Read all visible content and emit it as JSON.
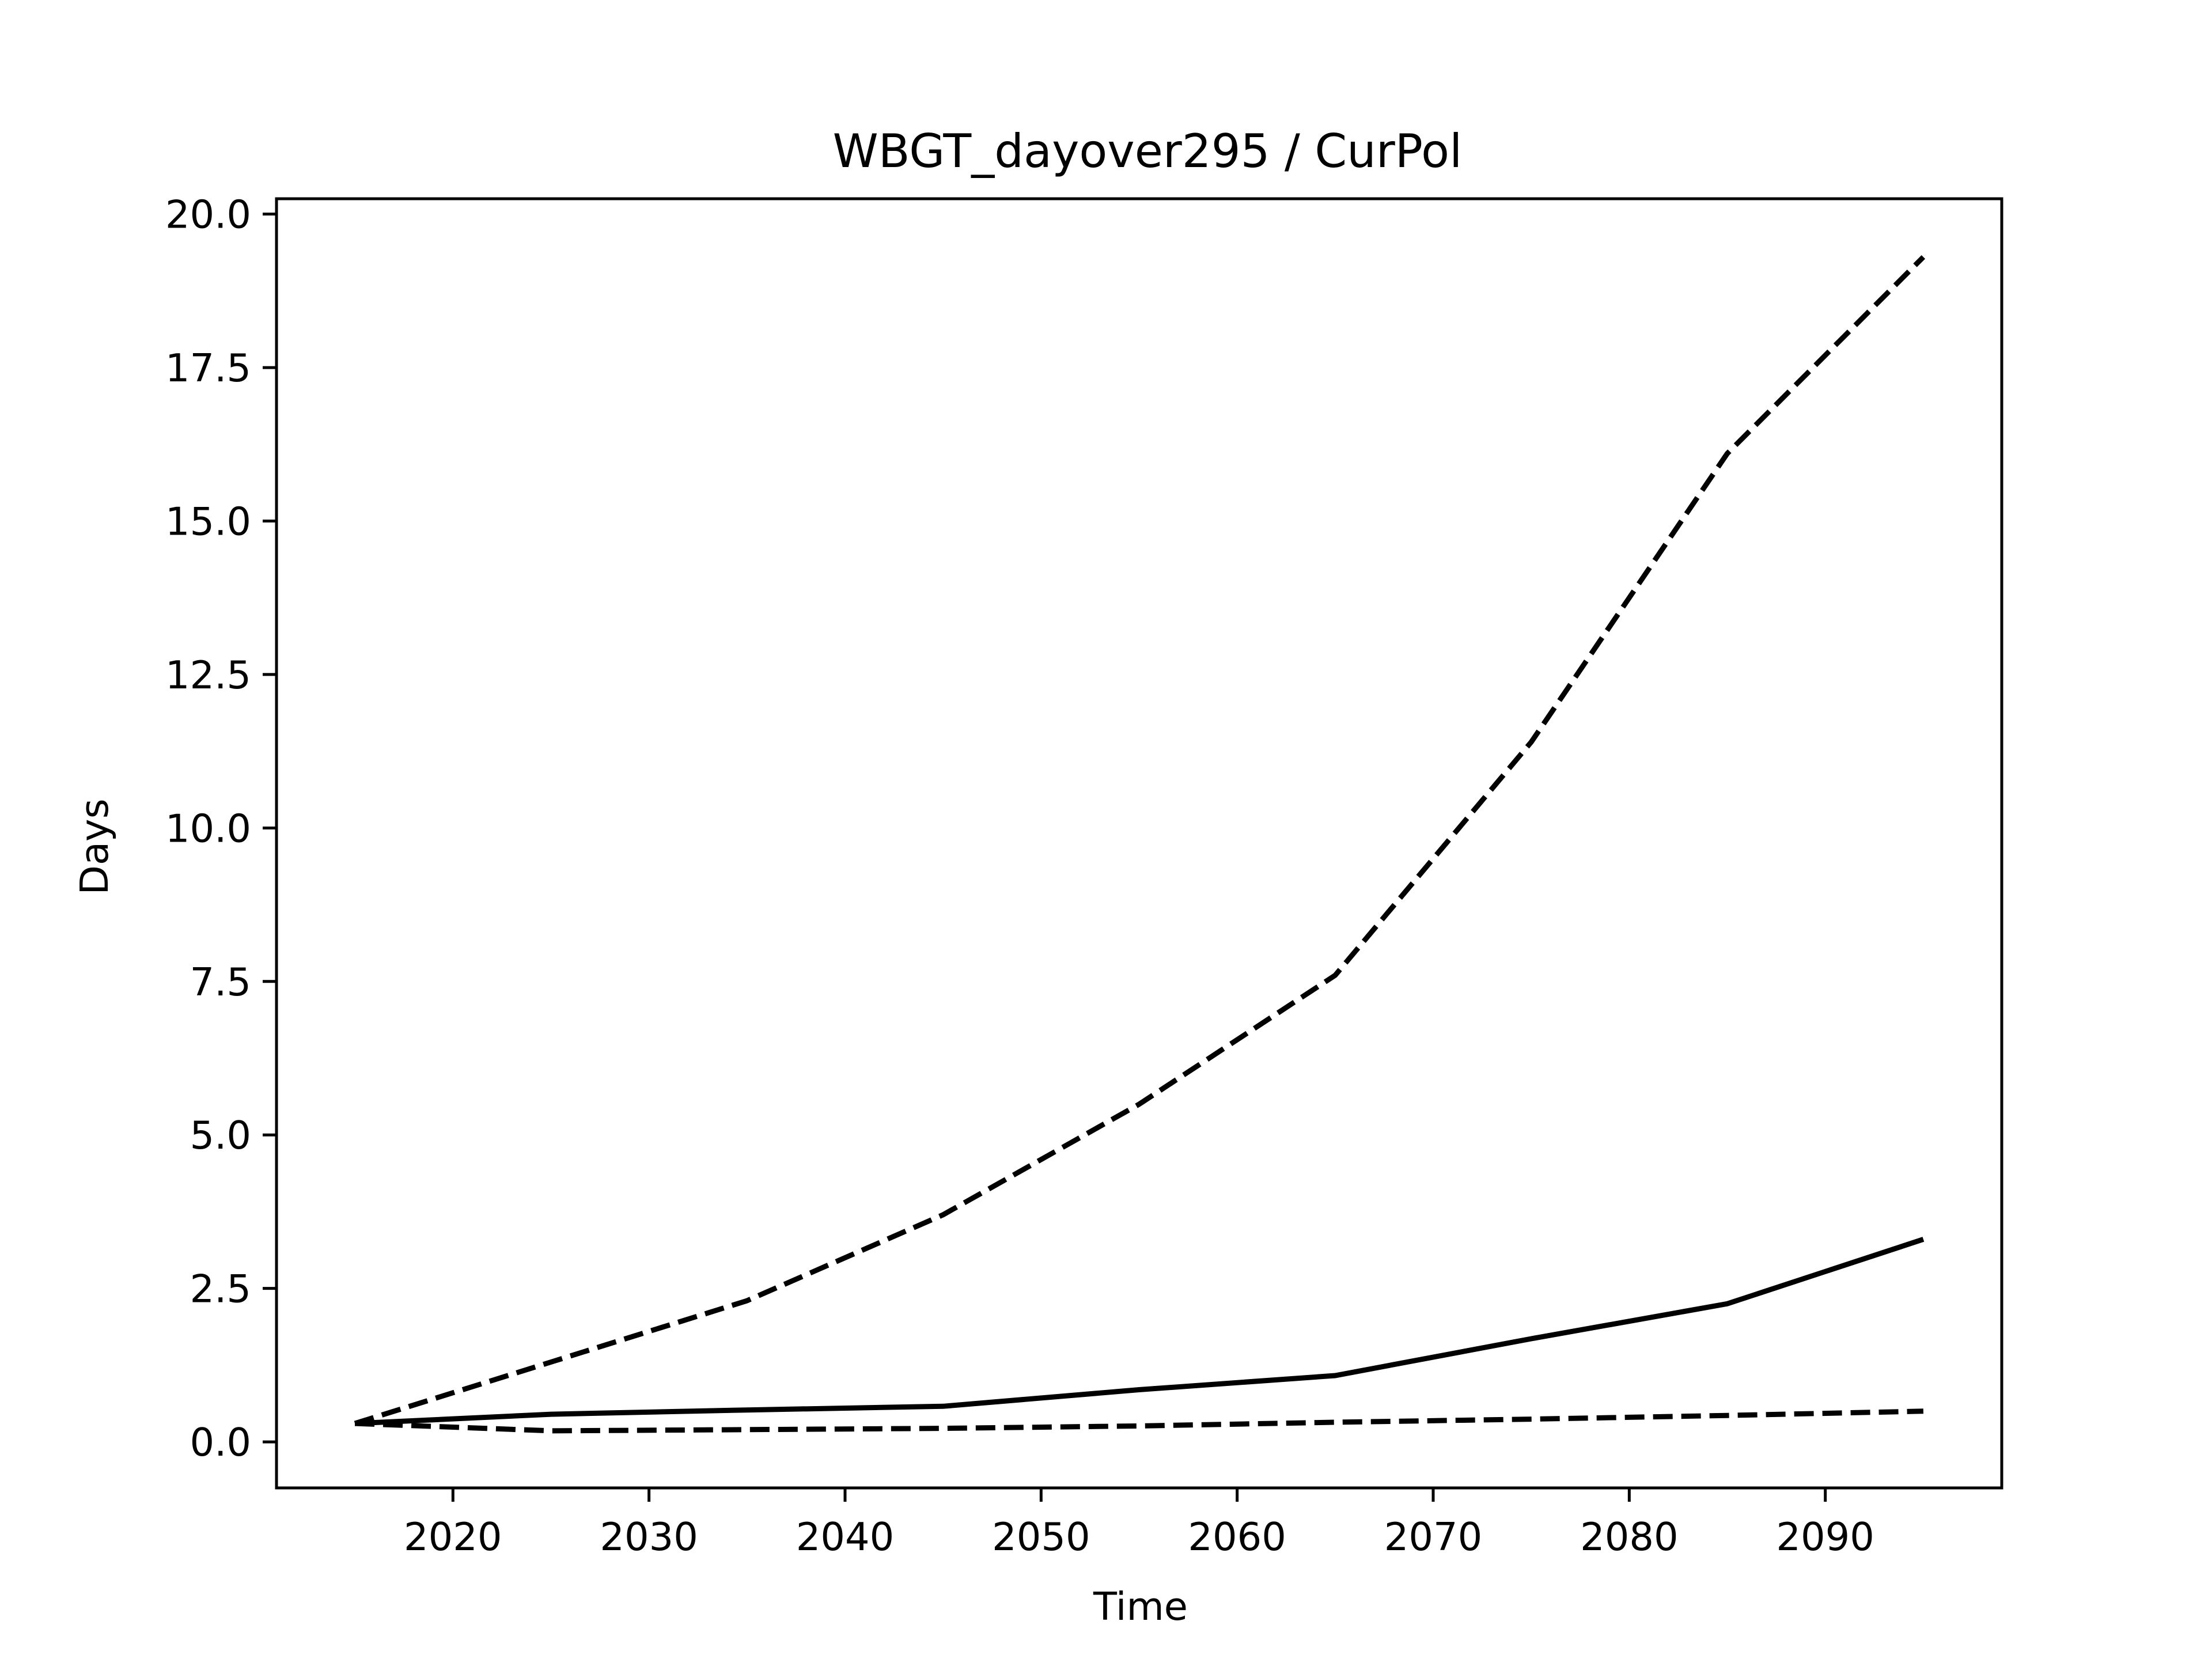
{
  "chart_data": {
    "type": "line",
    "title": "WBGT_dayover295 / CurPol",
    "xlabel": "Time",
    "ylabel": "Days",
    "xlim": [
      2011,
      2099
    ],
    "ylim": [
      -0.75,
      20.25
    ],
    "xticks": [
      2020,
      2030,
      2040,
      2050,
      2060,
      2070,
      2080,
      2090
    ],
    "yticks": [
      0.0,
      2.5,
      5.0,
      7.5,
      10.0,
      12.5,
      15.0,
      17.5,
      20.0
    ],
    "xtick_labels": [
      "2020",
      "2030",
      "2040",
      "2050",
      "2060",
      "2070",
      "2080",
      "2090"
    ],
    "ytick_labels": [
      "0.0",
      "2.5",
      "5.0",
      "7.5",
      "10.0",
      "12.5",
      "15.0",
      "17.5",
      "20.0"
    ],
    "grid": false,
    "legend": false,
    "x": [
      2015,
      2025,
      2035,
      2045,
      2055,
      2065,
      2075,
      2085,
      2095
    ],
    "series": [
      {
        "style": "dashed",
        "color": "#000000",
        "values": [
          0.3,
          1.3,
          2.3,
          3.7,
          5.5,
          7.6,
          11.4,
          16.1,
          19.3
        ]
      },
      {
        "style": "solid",
        "color": "#000000",
        "values": [
          0.3,
          0.45,
          0.52,
          0.58,
          0.85,
          1.08,
          1.68,
          2.25,
          3.3
        ]
      },
      {
        "style": "dashed",
        "color": "#000000",
        "values": [
          0.3,
          0.18,
          0.2,
          0.22,
          0.26,
          0.32,
          0.37,
          0.43,
          0.5
        ]
      }
    ]
  }
}
